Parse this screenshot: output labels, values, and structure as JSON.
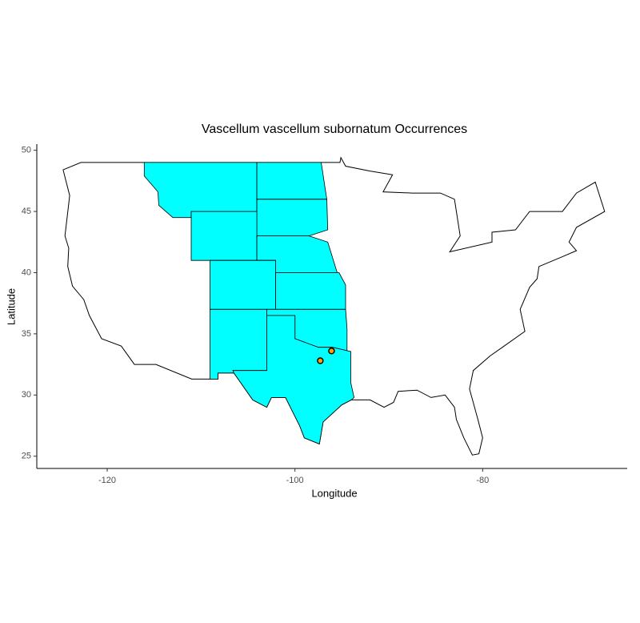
{
  "chart_data": {
    "type": "scatter",
    "title": "Vascellum vascellum subornatum Occurrences",
    "x_label": "Longitude",
    "y_label": "Latitude",
    "x": [
      -97.3,
      -96.1
    ],
    "values": [
      32.8,
      33.6
    ],
    "color": "#ffa500",
    "xlim": [
      -127.5,
      -64.6
    ],
    "ylim": [
      24.0,
      50.5
    ],
    "xticks": [
      -120,
      -100,
      -80
    ],
    "yticks": [
      25,
      30,
      35,
      40,
      45,
      50
    ]
  }
}
